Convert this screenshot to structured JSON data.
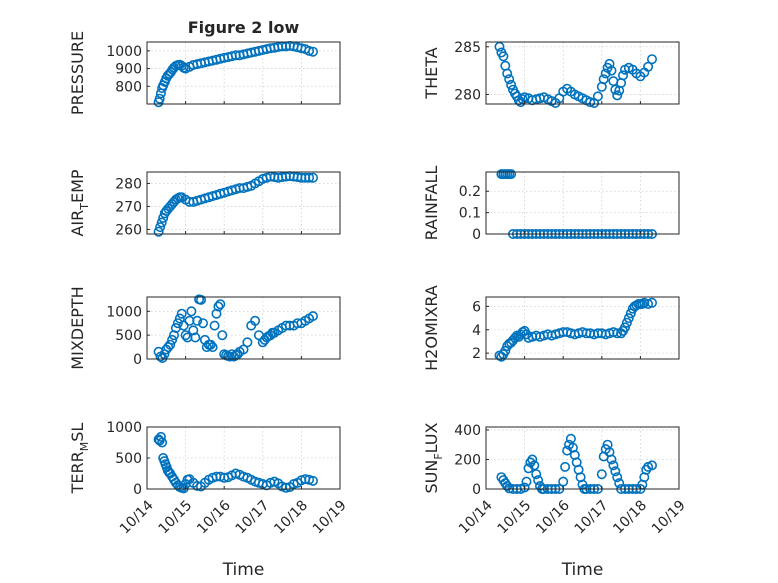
{
  "figure": {
    "title": "Figure 2 low",
    "marker_color": "#0072BD",
    "x_axis_label": "Time",
    "x_ticks": [
      "10/14",
      "10/15",
      "10/16",
      "10/17",
      "10/18",
      "10/19"
    ]
  },
  "chart_data": [
    {
      "type": "scatter",
      "ylabel": "PRESSURE",
      "title": "Figure 2 low",
      "xlim": [
        0,
        5
      ],
      "ylim": [
        700,
        1050
      ],
      "yticks": [
        800,
        900,
        1000
      ],
      "ytick_labels": [
        "800",
        "900",
        "1000"
      ],
      "xticks_visible": false,
      "x": [
        0.3,
        0.33,
        0.36,
        0.39,
        0.42,
        0.46,
        0.5,
        0.54,
        0.58,
        0.62,
        0.66,
        0.7,
        0.75,
        0.8,
        0.85,
        0.9,
        0.95,
        1.0,
        1.1,
        1.2,
        1.3,
        1.4,
        1.5,
        1.6,
        1.7,
        1.8,
        1.9,
        2.0,
        2.1,
        2.2,
        2.3,
        2.4,
        2.5,
        2.6,
        2.7,
        2.8,
        2.9,
        3.0,
        3.1,
        3.2,
        3.3,
        3.4,
        3.5,
        3.6,
        3.7,
        3.8,
        3.9,
        4.0,
        4.1,
        4.2,
        4.3
      ],
      "y": [
        710,
        730,
        760,
        790,
        805,
        825,
        845,
        860,
        870,
        880,
        895,
        905,
        915,
        920,
        922,
        915,
        905,
        900,
        910,
        920,
        925,
        930,
        935,
        940,
        945,
        950,
        955,
        960,
        965,
        970,
        975,
        975,
        980,
        985,
        990,
        995,
        1000,
        1005,
        1010,
        1015,
        1018,
        1022,
        1025,
        1025,
        1028,
        1025,
        1020,
        1015,
        1010,
        1000,
        995
      ]
    },
    {
      "type": "scatter",
      "ylabel": "THETA",
      "xlim": [
        0,
        5
      ],
      "ylim": [
        279,
        285.5
      ],
      "yticks": [
        280,
        285
      ],
      "ytick_labels": [
        "280",
        "285"
      ],
      "xticks_visible": false,
      "x": [
        0.35,
        0.4,
        0.45,
        0.5,
        0.55,
        0.6,
        0.65,
        0.7,
        0.75,
        0.8,
        0.85,
        0.9,
        0.95,
        1.0,
        1.1,
        1.2,
        1.3,
        1.4,
        1.5,
        1.6,
        1.7,
        1.8,
        1.9,
        2.0,
        2.1,
        2.2,
        2.3,
        2.4,
        2.5,
        2.6,
        2.7,
        2.8,
        2.9,
        3.0,
        3.05,
        3.1,
        3.15,
        3.2,
        3.25,
        3.3,
        3.35,
        3.4,
        3.45,
        3.5,
        3.55,
        3.6,
        3.7,
        3.8,
        3.9,
        4.0,
        4.1,
        4.2,
        4.3
      ],
      "y": [
        285.0,
        284.4,
        284.0,
        283.0,
        282.2,
        281.6,
        281.0,
        280.5,
        280.1,
        279.8,
        279.4,
        279.2,
        279.5,
        279.7,
        279.6,
        279.4,
        279.5,
        279.6,
        279.7,
        279.5,
        279.3,
        279.1,
        279.6,
        280.3,
        280.6,
        280.3,
        280.0,
        279.8,
        279.6,
        279.4,
        279.2,
        279.1,
        279.8,
        280.8,
        281.6,
        282.2,
        282.8,
        283.2,
        282.5,
        281.4,
        280.5,
        279.9,
        280.4,
        281.2,
        282.0,
        282.6,
        282.8,
        282.6,
        282.2,
        281.9,
        282.3,
        282.9,
        283.7
      ]
    },
    {
      "type": "scatter",
      "ylabel": "AIR_TEMP",
      "xlim": [
        0,
        5
      ],
      "ylim": [
        258,
        285
      ],
      "yticks": [
        260,
        270,
        280
      ],
      "ytick_labels": [
        "260",
        "270",
        "280"
      ],
      "xticks_visible": false,
      "x": [
        0.3,
        0.34,
        0.38,
        0.42,
        0.46,
        0.5,
        0.55,
        0.6,
        0.65,
        0.7,
        0.75,
        0.8,
        0.85,
        0.9,
        1.0,
        1.1,
        1.2,
        1.3,
        1.4,
        1.5,
        1.6,
        1.7,
        1.8,
        1.9,
        2.0,
        2.1,
        2.2,
        2.3,
        2.4,
        2.5,
        2.6,
        2.7,
        2.8,
        2.9,
        3.0,
        3.1,
        3.2,
        3.3,
        3.4,
        3.5,
        3.6,
        3.7,
        3.8,
        3.9,
        4.0,
        4.1,
        4.2,
        4.3
      ],
      "y": [
        259,
        261,
        263,
        265,
        267,
        268,
        269,
        270,
        271,
        272,
        273,
        273.5,
        274,
        274,
        273,
        272,
        272,
        272.5,
        273,
        273.5,
        274,
        274.5,
        275,
        275.5,
        276,
        276.5,
        277,
        277.5,
        278,
        278,
        278.5,
        279,
        280,
        281,
        282,
        282.5,
        283,
        282.8,
        282.5,
        282.8,
        283,
        283.2,
        283,
        282.8,
        282.5,
        282.5,
        282.5,
        282.5
      ]
    },
    {
      "type": "scatter",
      "ylabel": "RAINFALL",
      "xlim": [
        0,
        5
      ],
      "ylim": [
        0,
        0.29
      ],
      "yticks": [
        0,
        0.1,
        0.2
      ],
      "ytick_labels": [
        "0",
        "0.1",
        "0.2"
      ],
      "xticks_visible": false,
      "x": [
        0.4,
        0.45,
        0.5,
        0.55,
        0.6,
        0.65,
        0.7,
        0.8,
        0.9,
        1.0,
        1.1,
        1.2,
        1.3,
        1.4,
        1.5,
        1.6,
        1.7,
        1.8,
        1.9,
        2.0,
        2.1,
        2.2,
        2.3,
        2.4,
        2.5,
        2.6,
        2.7,
        2.8,
        2.9,
        3.0,
        3.1,
        3.2,
        3.3,
        3.4,
        3.5,
        3.6,
        3.7,
        3.8,
        3.9,
        4.0,
        4.1,
        4.2,
        4.3
      ],
      "y": [
        0.28,
        0.28,
        0.28,
        0.28,
        0.28,
        0.28,
        0.0,
        0.0,
        0.0,
        0.0,
        0.0,
        0.0,
        0.0,
        0.0,
        0.0,
        0.0,
        0.0,
        0.0,
        0.0,
        0.0,
        0.0,
        0.0,
        0.0,
        0.0,
        0.0,
        0.0,
        0.0,
        0.0,
        0.0,
        0.0,
        0.0,
        0.0,
        0.0,
        0.0,
        0.0,
        0.0,
        0.0,
        0.0,
        0.0,
        0.0,
        0.0,
        0.0,
        0.0
      ]
    },
    {
      "type": "scatter",
      "ylabel": "MIXDEPTH",
      "xlim": [
        0,
        5
      ],
      "ylim": [
        0,
        1300
      ],
      "yticks": [
        0,
        500,
        1000
      ],
      "ytick_labels": [
        "0",
        "500",
        "1000"
      ],
      "xticks_visible": false,
      "x": [
        0.3,
        0.35,
        0.4,
        0.45,
        0.5,
        0.55,
        0.6,
        0.65,
        0.7,
        0.75,
        0.8,
        0.85,
        0.9,
        0.95,
        1.0,
        1.05,
        1.1,
        1.15,
        1.2,
        1.25,
        1.3,
        1.35,
        1.4,
        1.45,
        1.5,
        1.55,
        1.6,
        1.65,
        1.7,
        1.75,
        1.8,
        1.85,
        1.9,
        1.95,
        2.0,
        2.05,
        2.1,
        2.15,
        2.2,
        2.25,
        2.3,
        2.35,
        2.4,
        2.5,
        2.6,
        2.7,
        2.8,
        2.9,
        3.0,
        3.05,
        3.1,
        3.15,
        3.2,
        3.25,
        3.3,
        3.4,
        3.5,
        3.6,
        3.7,
        3.8,
        3.9,
        4.0,
        4.1,
        4.2,
        4.3
      ],
      "y": [
        150,
        50,
        20,
        100,
        200,
        250,
        300,
        400,
        500,
        650,
        750,
        850,
        950,
        700,
        500,
        450,
        800,
        1000,
        600,
        450,
        800,
        1250,
        1240,
        750,
        400,
        250,
        300,
        300,
        250,
        700,
        950,
        1100,
        1150,
        500,
        100,
        80,
        60,
        50,
        100,
        50,
        80,
        100,
        150,
        200,
        350,
        700,
        800,
        500,
        350,
        400,
        450,
        480,
        500,
        550,
        550,
        600,
        650,
        700,
        700,
        700,
        750,
        750,
        800,
        850,
        900
      ]
    },
    {
      "type": "scatter",
      "ylabel": "H2OMIXRA",
      "xlim": [
        0,
        5
      ],
      "ylim": [
        1.5,
        6.8
      ],
      "yticks": [
        2,
        4,
        6
      ],
      "ytick_labels": [
        "2",
        "4",
        "6"
      ],
      "xticks_visible": false,
      "x": [
        0.35,
        0.4,
        0.45,
        0.5,
        0.55,
        0.6,
        0.65,
        0.7,
        0.75,
        0.8,
        0.85,
        0.9,
        0.95,
        1.0,
        1.05,
        1.1,
        1.2,
        1.3,
        1.4,
        1.5,
        1.6,
        1.7,
        1.8,
        1.9,
        2.0,
        2.1,
        2.2,
        2.3,
        2.4,
        2.5,
        2.6,
        2.7,
        2.8,
        2.9,
        3.0,
        3.1,
        3.2,
        3.3,
        3.4,
        3.5,
        3.55,
        3.6,
        3.65,
        3.7,
        3.75,
        3.8,
        3.85,
        3.9,
        3.95,
        4.0,
        4.05,
        4.1,
        4.2,
        4.3
      ],
      "y": [
        1.8,
        1.7,
        1.9,
        2.2,
        2.6,
        2.8,
        2.9,
        3.1,
        3.3,
        3.5,
        3.4,
        3.6,
        3.8,
        3.9,
        3.6,
        3.3,
        3.4,
        3.5,
        3.4,
        3.5,
        3.6,
        3.5,
        3.6,
        3.7,
        3.8,
        3.8,
        3.7,
        3.6,
        3.7,
        3.8,
        3.7,
        3.7,
        3.6,
        3.7,
        3.7,
        3.6,
        3.7,
        3.8,
        3.7,
        3.7,
        3.9,
        4.2,
        4.6,
        5.0,
        5.4,
        5.8,
        6.0,
        6.1,
        6.2,
        6.2,
        6.2,
        6.3,
        6.2,
        6.3
      ]
    },
    {
      "type": "scatter",
      "ylabel": "TERR_MSL",
      "xlim": [
        0,
        5
      ],
      "ylim": [
        0,
        1000
      ],
      "yticks": [
        0,
        500,
        1000
      ],
      "ytick_labels": [
        "0",
        "500",
        "1000"
      ],
      "xticks_visible": true,
      "x": [
        0.3,
        0.33,
        0.36,
        0.39,
        0.42,
        0.45,
        0.48,
        0.51,
        0.54,
        0.57,
        0.6,
        0.65,
        0.7,
        0.75,
        0.8,
        0.85,
        0.9,
        0.95,
        1.0,
        1.05,
        1.1,
        1.2,
        1.3,
        1.4,
        1.5,
        1.6,
        1.7,
        1.8,
        1.9,
        2.0,
        2.1,
        2.2,
        2.3,
        2.4,
        2.5,
        2.6,
        2.7,
        2.8,
        2.9,
        3.0,
        3.1,
        3.2,
        3.3,
        3.4,
        3.5,
        3.6,
        3.7,
        3.8,
        3.9,
        4.0,
        4.1,
        4.2,
        4.3
      ],
      "y": [
        800,
        780,
        840,
        750,
        500,
        450,
        400,
        350,
        300,
        270,
        250,
        200,
        150,
        100,
        60,
        30,
        20,
        10,
        80,
        150,
        160,
        100,
        50,
        40,
        100,
        150,
        180,
        200,
        200,
        180,
        190,
        220,
        250,
        230,
        200,
        180,
        150,
        120,
        100,
        80,
        60,
        100,
        120,
        90,
        40,
        20,
        30,
        80,
        100,
        140,
        160,
        150,
        130
      ]
    },
    {
      "type": "scatter",
      "ylabel": "SUN_FLUX",
      "xlim": [
        0,
        5
      ],
      "ylim": [
        0,
        420
      ],
      "yticks": [
        0,
        200,
        400
      ],
      "ytick_labels": [
        "0",
        "200",
        "400"
      ],
      "xticks_visible": true,
      "x": [
        0.4,
        0.45,
        0.5,
        0.55,
        0.6,
        0.7,
        0.8,
        0.9,
        1.0,
        1.05,
        1.1,
        1.15,
        1.2,
        1.25,
        1.3,
        1.35,
        1.4,
        1.45,
        1.5,
        1.6,
        1.7,
        1.8,
        1.9,
        2.0,
        2.05,
        2.1,
        2.15,
        2.2,
        2.25,
        2.3,
        2.35,
        2.4,
        2.45,
        2.5,
        2.55,
        2.6,
        2.7,
        2.8,
        2.9,
        3.0,
        3.05,
        3.1,
        3.15,
        3.2,
        3.25,
        3.3,
        3.35,
        3.4,
        3.45,
        3.5,
        3.6,
        3.7,
        3.8,
        3.9,
        4.0,
        4.05,
        4.1,
        4.15,
        4.2,
        4.3
      ],
      "y": [
        80,
        60,
        40,
        20,
        5,
        0,
        0,
        0,
        10,
        50,
        140,
        180,
        200,
        160,
        100,
        60,
        20,
        0,
        0,
        0,
        0,
        0,
        0,
        50,
        150,
        260,
        300,
        340,
        280,
        230,
        180,
        130,
        80,
        30,
        0,
        0,
        0,
        0,
        0,
        100,
        220,
        270,
        300,
        250,
        200,
        160,
        120,
        80,
        40,
        0,
        0,
        0,
        0,
        0,
        0,
        30,
        80,
        130,
        150,
        160
      ]
    }
  ]
}
